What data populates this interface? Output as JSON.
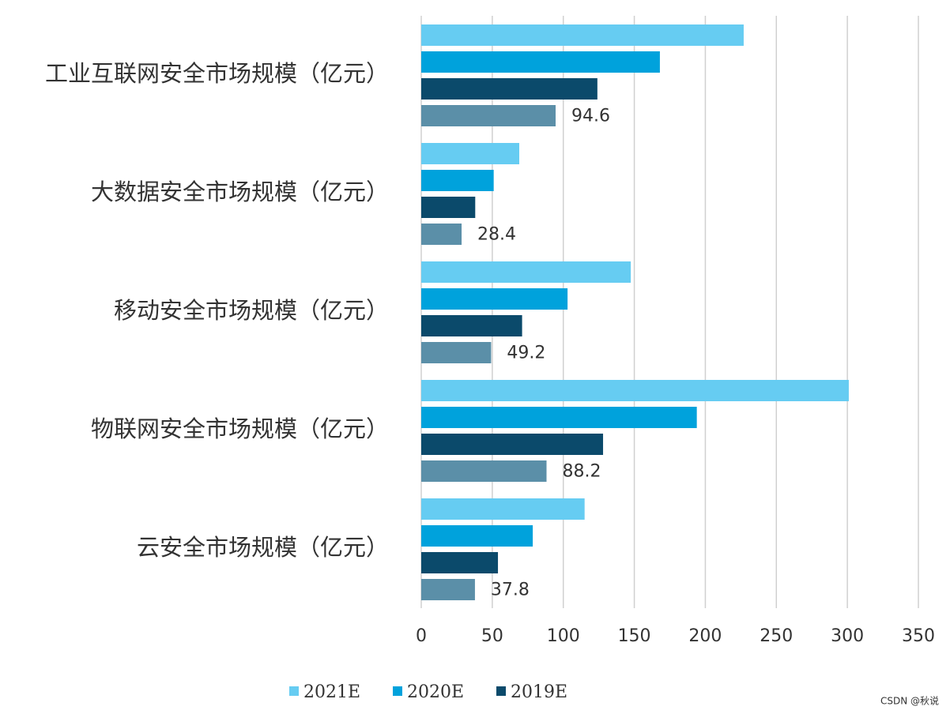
{
  "chart_data": {
    "type": "hbar",
    "categories": [
      "工业互联网安全市场规模（亿元）",
      "大数据安全市场规模（亿元）",
      "移动安全市场规模（亿元）",
      "物联网安全市场规模（亿元）",
      "云安全市场规模（亿元）"
    ],
    "series": [
      {
        "name": "2021E",
        "color": "#66ccf2",
        "values": [
          227,
          69,
          147.5,
          301,
          115
        ]
      },
      {
        "name": "2020E",
        "color": "#00a2dc",
        "values": [
          168,
          51,
          103,
          194,
          78.5
        ]
      },
      {
        "name": "2019E",
        "color": "#0b4a6b",
        "values": [
          124,
          38,
          71,
          128,
          54
        ]
      },
      {
        "color": "#5b8fa8",
        "values": [
          94.6,
          28.4,
          49.2,
          88.2,
          37.8
        ],
        "show_value_labels": true
      }
    ],
    "xlim": [
      0,
      350
    ],
    "xticks": [
      0,
      50,
      100,
      150,
      200,
      250,
      300,
      350
    ],
    "grid": true,
    "legend": "bottom"
  },
  "watermark": "CSDN @秋说"
}
